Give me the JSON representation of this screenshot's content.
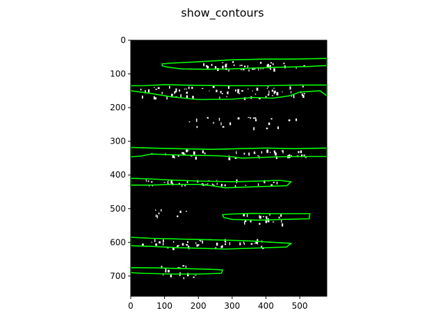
{
  "figure": {
    "title": "show_contours"
  },
  "image": {
    "width": 580,
    "height": 760,
    "background": "#000000",
    "contour_color": "#00ff00",
    "blob_color": "#ffffff"
  },
  "axes": {
    "x_ticks": [
      0,
      100,
      200,
      300,
      400,
      500
    ],
    "y_ticks": [
      0,
      100,
      200,
      300,
      400,
      500,
      600,
      700
    ]
  },
  "contours": [
    [
      [
        93,
        70
      ],
      [
        120,
        68
      ],
      [
        200,
        64
      ],
      [
        300,
        58
      ],
      [
        400,
        56
      ],
      [
        480,
        56
      ],
      [
        580,
        54
      ],
      [
        580,
        75
      ],
      [
        520,
        78
      ],
      [
        450,
        80
      ],
      [
        380,
        82
      ],
      [
        300,
        85
      ],
      [
        220,
        86
      ],
      [
        150,
        85
      ],
      [
        110,
        80
      ],
      [
        93,
        76
      ]
    ],
    [
      [
        0,
        135
      ],
      [
        40,
        135
      ],
      [
        100,
        132
      ],
      [
        200,
        134
      ],
      [
        300,
        135
      ],
      [
        400,
        135
      ],
      [
        500,
        133
      ],
      [
        580,
        133
      ],
      [
        580,
        165
      ],
      [
        560,
        150
      ],
      [
        500,
        154
      ],
      [
        470,
        165
      ],
      [
        420,
        172
      ],
      [
        360,
        170
      ],
      [
        300,
        175
      ],
      [
        200,
        176
      ],
      [
        120,
        168
      ],
      [
        60,
        158
      ],
      [
        0,
        150
      ]
    ],
    [
      [
        0,
        318
      ],
      [
        60,
        320
      ],
      [
        140,
        322
      ],
      [
        240,
        324
      ],
      [
        320,
        322
      ],
      [
        400,
        320
      ],
      [
        480,
        322
      ],
      [
        580,
        320
      ],
      [
        580,
        345
      ],
      [
        500,
        345
      ],
      [
        440,
        346
      ],
      [
        380,
        348
      ],
      [
        330,
        350
      ],
      [
        300,
        346
      ],
      [
        260,
        343
      ],
      [
        200,
        342
      ],
      [
        120,
        340
      ],
      [
        60,
        338
      ],
      [
        30,
        344
      ],
      [
        0,
        346
      ]
    ],
    [
      [
        0,
        410
      ],
      [
        60,
        412
      ],
      [
        120,
        415
      ],
      [
        200,
        418
      ],
      [
        300,
        420
      ],
      [
        380,
        418
      ],
      [
        440,
        416
      ],
      [
        475,
        420
      ],
      [
        462,
        432
      ],
      [
        400,
        434
      ],
      [
        340,
        436
      ],
      [
        280,
        438
      ],
      [
        240,
        432
      ],
      [
        200,
        428
      ],
      [
        120,
        428
      ],
      [
        60,
        430
      ],
      [
        0,
        430
      ]
    ],
    [
      [
        272,
        518
      ],
      [
        300,
        516
      ],
      [
        360,
        514
      ],
      [
        420,
        515
      ],
      [
        530,
        515
      ],
      [
        528,
        530
      ],
      [
        450,
        532
      ],
      [
        380,
        534
      ],
      [
        300,
        532
      ],
      [
        275,
        526
      ]
    ],
    [
      [
        0,
        585
      ],
      [
        60,
        588
      ],
      [
        140,
        590
      ],
      [
        220,
        592
      ],
      [
        300,
        594
      ],
      [
        360,
        596
      ],
      [
        420,
        600
      ],
      [
        475,
        603
      ],
      [
        460,
        614
      ],
      [
        400,
        616
      ],
      [
        340,
        618
      ],
      [
        280,
        620
      ],
      [
        220,
        618
      ],
      [
        140,
        616
      ],
      [
        60,
        612
      ],
      [
        0,
        610
      ]
    ],
    [
      [
        0,
        675
      ],
      [
        80,
        676
      ],
      [
        160,
        678
      ],
      [
        240,
        680
      ],
      [
        272,
        682
      ],
      [
        268,
        692
      ],
      [
        200,
        694
      ],
      [
        120,
        694
      ],
      [
        40,
        692
      ],
      [
        0,
        690
      ]
    ]
  ],
  "blob_bands": [
    {
      "x1": 185,
      "x2": 520,
      "y1": 62,
      "y2": 88,
      "count": 40
    },
    {
      "x1": 20,
      "x2": 520,
      "y1": 134,
      "y2": 170,
      "count": 70
    },
    {
      "x1": 170,
      "x2": 500,
      "y1": 228,
      "y2": 262,
      "count": 22
    },
    {
      "x1": 60,
      "x2": 520,
      "y1": 324,
      "y2": 348,
      "count": 45
    },
    {
      "x1": 40,
      "x2": 440,
      "y1": 412,
      "y2": 432,
      "count": 38
    },
    {
      "x1": 70,
      "x2": 170,
      "y1": 500,
      "y2": 522,
      "count": 8
    },
    {
      "x1": 330,
      "x2": 450,
      "y1": 514,
      "y2": 545,
      "count": 20
    },
    {
      "x1": 30,
      "x2": 400,
      "y1": 588,
      "y2": 616,
      "count": 45
    },
    {
      "x1": 80,
      "x2": 200,
      "y1": 665,
      "y2": 705,
      "count": 18
    }
  ]
}
